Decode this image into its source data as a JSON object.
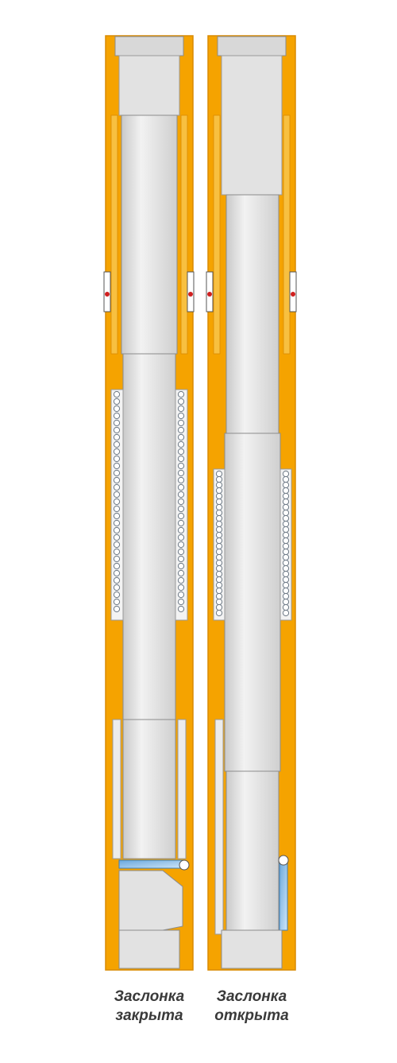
{
  "captions": {
    "closed": {
      "line1": "Заслонка",
      "line2": "закрыта"
    },
    "open": {
      "line1": "Заслонка",
      "line2": "открыта"
    }
  },
  "colors": {
    "housing": "#f5a300",
    "housing_edge": "#d98a00",
    "bore": "#dcdcdc",
    "tube": "#e6e6e6",
    "tube_edge": "#8c8c8c",
    "spring": "#b8c0c8",
    "flapper": "#9bc8ec",
    "seal": "#d02020"
  },
  "icons": [
    "valve-closed-diagram",
    "valve-open-diagram",
    "spring-coil-icon",
    "flapper-icon",
    "seal-ring-icon"
  ]
}
